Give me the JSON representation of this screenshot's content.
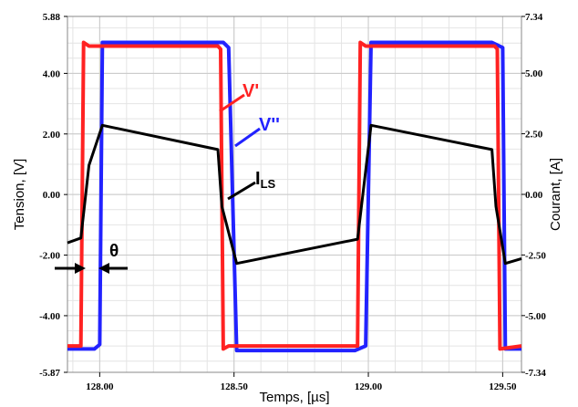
{
  "chart_data": {
    "type": "line",
    "xlabel": "Temps, [µs]",
    "ylabel_left": "Tension, [V]",
    "ylabel_right": "Courant, [A]",
    "xlim": [
      127.88,
      129.57
    ],
    "ylim_left": [
      -5.87,
      5.88
    ],
    "ylim_right": [
      -7.34,
      7.34
    ],
    "grid": true,
    "x_ticks": [
      128.0,
      128.5,
      129.0,
      129.5
    ],
    "x_tick_labels": [
      "128.00",
      "128.50",
      "129.00",
      "129.50"
    ],
    "left_ticks": [
      5.88,
      4.0,
      2.0,
      0.0,
      -2.0,
      -4.0,
      -5.87
    ],
    "left_tick_labels": [
      "5.88",
      "4.00",
      "2.00",
      "0.00",
      "-2.00",
      "-4.00",
      "-5.87"
    ],
    "right_ticks": [
      7.34,
      5.0,
      2.5,
      0.0,
      -2.5,
      -5.0,
      -7.34
    ],
    "right_tick_labels": [
      "7.34",
      "5.00",
      "2.50",
      "0.00",
      "-2.50",
      "-5.00",
      "-7.34"
    ],
    "series": [
      {
        "name": "V''",
        "axis": "left",
        "color": "#2222ff",
        "x": [
          127.88,
          127.98,
          128.0,
          128.01,
          128.46,
          128.48,
          128.51,
          128.95,
          128.99,
          129.01,
          129.46,
          129.5,
          129.51,
          129.57
        ],
        "y": [
          -5.1,
          -5.1,
          -4.95,
          5.02,
          5.02,
          4.85,
          -5.15,
          -5.15,
          -5.0,
          5.02,
          5.02,
          4.85,
          -5.1,
          -5.1
        ]
      },
      {
        "name": "V'",
        "axis": "left",
        "color": "#ff2222",
        "x": [
          127.88,
          127.93,
          127.94,
          127.96,
          128.44,
          128.45,
          128.46,
          128.48,
          128.96,
          128.97,
          128.99,
          129.47,
          129.48,
          129.49,
          129.57
        ],
        "y": [
          -5.0,
          -5.0,
          5.02,
          4.9,
          4.9,
          4.8,
          -5.1,
          -5.0,
          -5.0,
          5.02,
          4.9,
          4.9,
          4.8,
          -5.1,
          -5.0
        ]
      },
      {
        "name": "I_LS",
        "axis": "right",
        "color": "#000000",
        "x": [
          127.88,
          127.93,
          127.96,
          128.01,
          128.44,
          128.455,
          128.51,
          128.96,
          129.01,
          129.46,
          129.475,
          129.51,
          129.57
        ],
        "y": [
          -2.0,
          -1.8,
          1.2,
          2.85,
          1.85,
          -0.5,
          -2.85,
          -1.85,
          2.85,
          1.85,
          -0.5,
          -2.85,
          -2.65
        ]
      }
    ],
    "annotations": [
      {
        "text": "V'",
        "color": "#ff2222"
      },
      {
        "text": "V''",
        "color": "#2222ff"
      },
      {
        "text": "I",
        "sub": "LS",
        "color": "#000000"
      },
      {
        "text": "θ",
        "color": "#000000"
      }
    ]
  }
}
